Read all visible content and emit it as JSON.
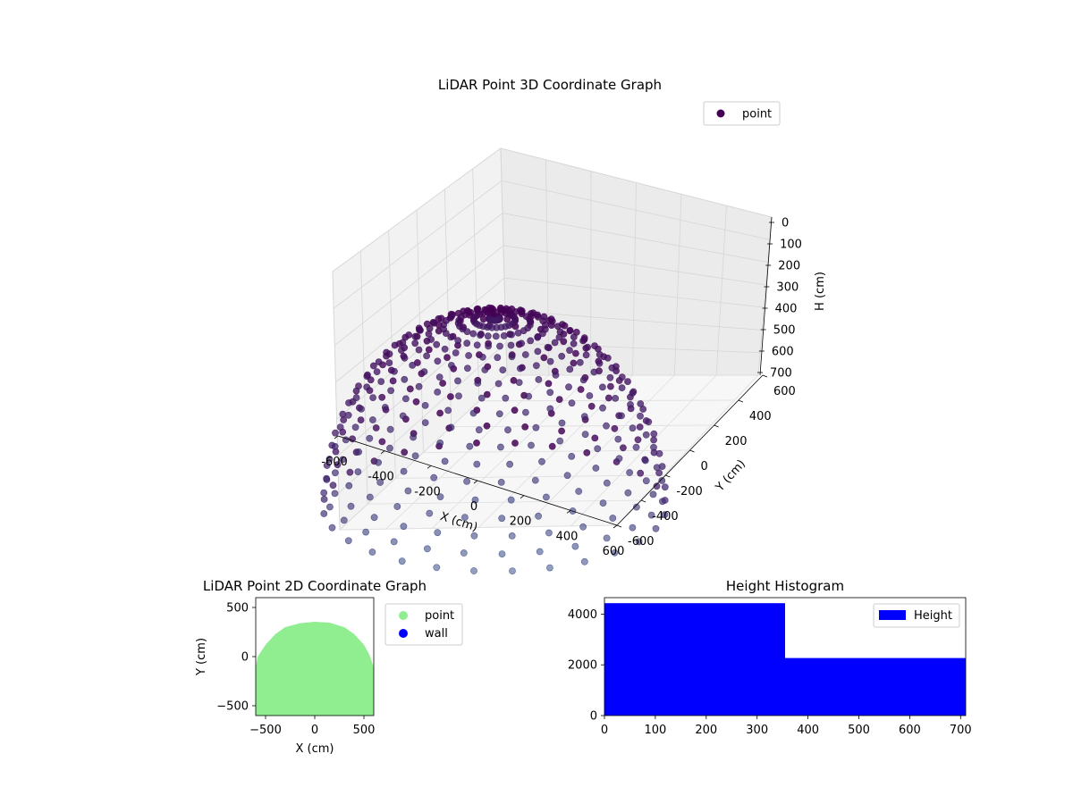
{
  "chart_data": [
    {
      "type": "scatter",
      "projection": "3d",
      "title": "LiDAR Point 3D Coordinate Graph",
      "xlabel": "X (cm)",
      "ylabel": "Y (cm)",
      "zlabel": "H (cm)",
      "xlim": [
        -600,
        600
      ],
      "ylim": [
        -600,
        600
      ],
      "zlim": [
        0,
        700
      ],
      "zaxis_inverted": true,
      "xticks": [
        -600,
        -400,
        -200,
        0,
        200,
        400,
        600
      ],
      "yticks": [
        -600,
        -400,
        -200,
        0,
        200,
        400,
        600
      ],
      "zticks": [
        0,
        100,
        200,
        300,
        400,
        500,
        600,
        700
      ],
      "grid": true,
      "legend": {
        "placement": "top-right",
        "entries": [
          {
            "label": "point",
            "color": "#440154"
          }
        ]
      },
      "series": [
        {
          "name": "point",
          "shape": "upper hemisphere of radius ~600 cm sampled along meridians",
          "radius": 600,
          "meridians": 28,
          "color_near": "#440154",
          "color_far": "#3b528b"
        }
      ]
    },
    {
      "type": "scatter",
      "title": "LiDAR Point 2D Coordinate Graph",
      "xlabel": "X (cm)",
      "ylabel": "Y (cm)",
      "xlim": [
        -600,
        600
      ],
      "ylim": [
        -600,
        600
      ],
      "xticks": [
        -500,
        0,
        500
      ],
      "yticks": [
        -500,
        0,
        500
      ],
      "legend": {
        "placement": "outside-right",
        "entries": [
          {
            "label": "point",
            "color": "#90ee90"
          },
          {
            "label": "wall",
            "color": "#0000ff"
          }
        ]
      },
      "series": [
        {
          "name": "point",
          "color": "#90ee90",
          "boundary": [
            [
              -600,
              -110
            ],
            [
              -580,
              0
            ],
            [
              -500,
              120
            ],
            [
              -400,
              230
            ],
            [
              -300,
              300
            ],
            [
              -150,
              340
            ],
            [
              0,
              355
            ],
            [
              150,
              345
            ],
            [
              300,
              300
            ],
            [
              400,
              230
            ],
            [
              500,
              120
            ],
            [
              560,
              10
            ],
            [
              600,
              -110
            ]
          ]
        }
      ]
    },
    {
      "type": "bar",
      "subtype": "histogram",
      "title": "Height Histogram",
      "xlim": [
        0,
        710
      ],
      "ylim": [
        0,
        4650
      ],
      "xticks": [
        0,
        100,
        200,
        300,
        400,
        500,
        600,
        700
      ],
      "yticks": [
        0,
        2000,
        4000
      ],
      "color": "#0000ff",
      "legend": {
        "placement": "top-right",
        "entries": [
          {
            "label": "Height",
            "color": "#0000ff"
          }
        ]
      },
      "bins": [
        {
          "start": 0,
          "end": 355,
          "count": 4430
        },
        {
          "start": 355,
          "end": 710,
          "count": 2270
        }
      ]
    }
  ]
}
